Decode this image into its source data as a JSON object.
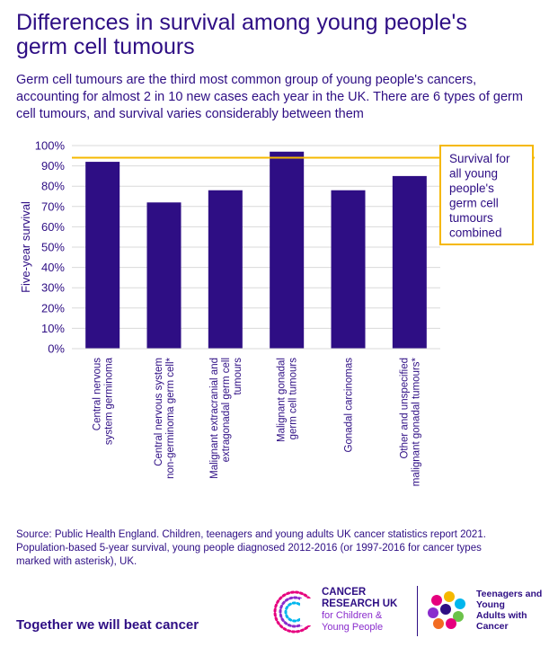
{
  "header": {
    "title_line1": "Differences in survival among young people's",
    "title_line2": "germ cell tumours",
    "subtitle": "Germ cell tumours are the third most common group of young people's cancers, accounting for almost 2 in 10 new cases each year in the UK. There are 6 types of germ cell tumours, and survival varies considerably between them"
  },
  "chart_data": {
    "type": "bar",
    "ylabel": "Five-year survival",
    "xlabel": "",
    "ylim": [
      0,
      100
    ],
    "yticks": [
      "0%",
      "10%",
      "20%",
      "30%",
      "40%",
      "50%",
      "60%",
      "70%",
      "80%",
      "90%",
      "100%"
    ],
    "categories": [
      [
        "Central nervous",
        "system germinoma"
      ],
      [
        "Central nervous system",
        "non-germinoma germ cell*"
      ],
      [
        "Malignant extracranial and",
        "extragonadal germ cell",
        "tumours"
      ],
      [
        "Malignant gonadal",
        "germ cell tumours"
      ],
      [
        "Gonadal carcinomas"
      ],
      [
        "Other and unspecified",
        "malignant gonadal tumours*"
      ]
    ],
    "values": [
      92,
      72,
      78,
      97,
      78,
      85
    ],
    "reference_line": {
      "value": 94,
      "label_lines": [
        "Survival for",
        "all young",
        "people's",
        "germ cell",
        "tumours",
        "combined"
      ]
    },
    "grid": true,
    "colors": {
      "bar": "#2e0e84",
      "reference": "#f5b800",
      "grid": "#d9d9d9",
      "text": "#2e0e84"
    }
  },
  "footer": {
    "source_line1": "Source: Public Health England. Children, teenagers and young adults UK cancer statistics report 2021.",
    "source_line2": "Population-based 5-year survival, young people diagnosed 2012-2016 (or 1997-2016 for cancer types",
    "source_line3": "marked with asterisk), UK.",
    "tagline": "Together we will beat cancer"
  },
  "logos": {
    "cruk_line1": "CANCER",
    "cruk_line2": "RESEARCH UK",
    "cruk_line3": "for Children &",
    "cruk_line4": "Young People",
    "tya_line1": "Teenagers and",
    "tya_line2": "Young",
    "tya_line3": "Adults with",
    "tya_line4": "Cancer"
  }
}
